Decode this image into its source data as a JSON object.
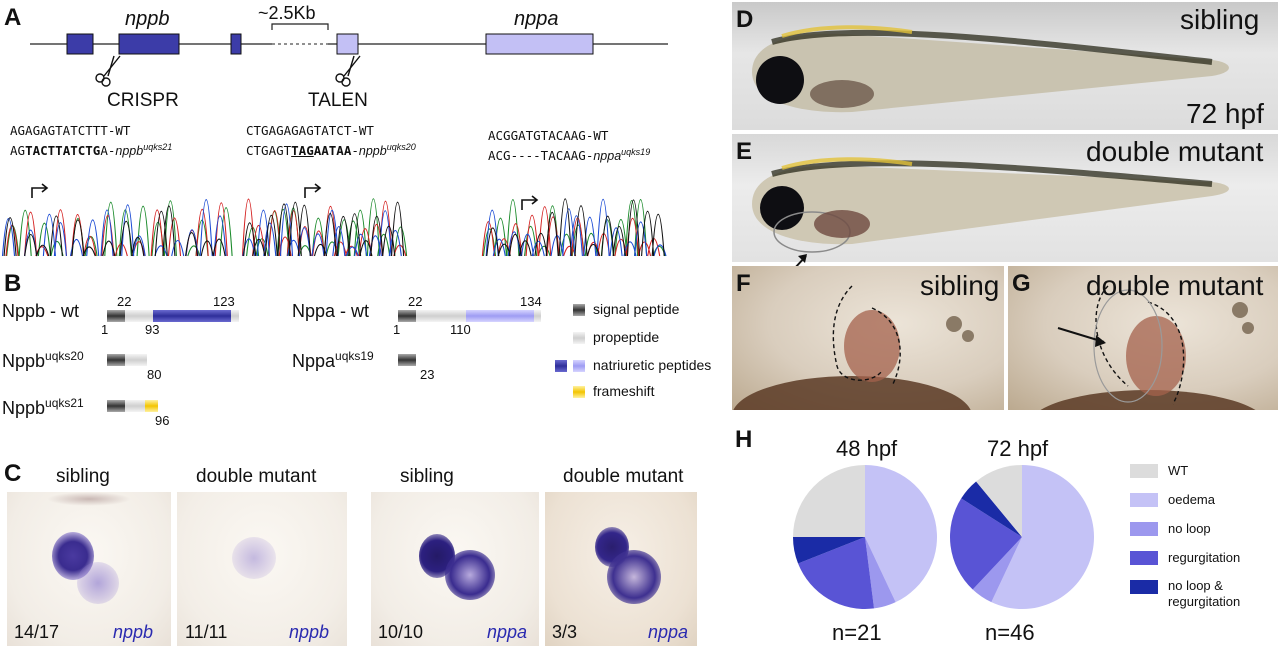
{
  "panels": {
    "A": "A",
    "B": "B",
    "C": "C",
    "D": "D",
    "E": "E",
    "F": "F",
    "G": "G",
    "H": "H"
  },
  "colors": {
    "nppb_dark": "#3c3ca8",
    "nppa_light": "#c3c0f5",
    "wt_grey": "#dcdcdc",
    "oedema": "#c4c2f6",
    "noloop": "#9c98ee",
    "regurgitation": "#5954d5",
    "noloop_regurg": "#1a2ba6",
    "frameshift": "#f6cd1e"
  },
  "panelA": {
    "gene1": "nppb",
    "gene2": "nppa",
    "gap": "~2.5Kb",
    "crispr": "CRISPR",
    "talen": "TALEN",
    "seq1_wt": "AGAGAGTATCTTT-WT",
    "seq1_mut_pre": "AG",
    "seq1_mut_bold": "TACTTATCTG",
    "seq1_mut_post": "A-",
    "seq1_allele": "nppb",
    "seq1_sup": "uqks21",
    "seq2_wt": "CTGAGAGAGTATCT-WT",
    "seq2_mut_pre": "CTGAGT",
    "seq2_mut_under": "TAG",
    "seq2_mut_bold": "AATAA",
    "seq2_mut_post": "-",
    "seq2_allele": "nppb",
    "seq2_sup": "uqks20",
    "seq3_wt": "ACGGATGTACAAG-WT",
    "seq3_mut": "ACG----TACAAG-",
    "seq3_allele": "nppa",
    "seq3_sup": "uqks19"
  },
  "panelB": {
    "nppb_wt": "Nppb - wt",
    "nppb_wt_n1": "22",
    "nppb_wt_n2": "123",
    "nppb_wt_n3": "1",
    "nppb_wt_n4": "93",
    "nppb_20": "Nppb",
    "nppb_20_sup": "uqks20",
    "nppb_20_n": "80",
    "nppb_21": "Nppb",
    "nppb_21_sup": "uqks21",
    "nppb_21_n": "96",
    "nppa_wt": "Nppa - wt",
    "nppa_wt_n1": "22",
    "nppa_wt_n2": "134",
    "nppa_wt_n3": "1",
    "nppa_wt_n4": "110",
    "nppa_19": "Nppa",
    "nppa_19_sup": "uqks19",
    "nppa_19_n": "23",
    "legend": [
      "signal peptide",
      "propeptide",
      "natriuretic peptides",
      "frameshift"
    ]
  },
  "panelC": {
    "titles": [
      "sibling",
      "double mutant",
      "sibling",
      "double mutant"
    ],
    "counts": [
      "14/17",
      "11/11",
      "10/10",
      "3/3"
    ],
    "genes": [
      "nppb",
      "nppb",
      "nppa",
      "nppa"
    ]
  },
  "panelD": {
    "label": "sibling",
    "time": "72 hpf"
  },
  "panelE": {
    "label": "double mutant"
  },
  "panelF": {
    "label": "sibling"
  },
  "panelG": {
    "label": "double mutant"
  },
  "chart_data": [
    {
      "type": "pie",
      "title": "48 hpf",
      "n_label": "n=21",
      "categories": [
        "WT",
        "oedema",
        "no loop",
        "regurgitation",
        "no loop & regurgitation"
      ],
      "values": [
        25,
        43,
        5,
        21,
        6
      ]
    },
    {
      "type": "pie",
      "title": "72 hpf",
      "n_label": "n=46",
      "categories": [
        "WT",
        "oedema",
        "no loop",
        "regurgitation",
        "no loop & regurgitation"
      ],
      "values": [
        11,
        57,
        5,
        22,
        5
      ]
    }
  ],
  "legend_H": [
    "WT",
    "oedema",
    "no loop",
    "regurgitation",
    "no loop &",
    "regurgitation"
  ]
}
